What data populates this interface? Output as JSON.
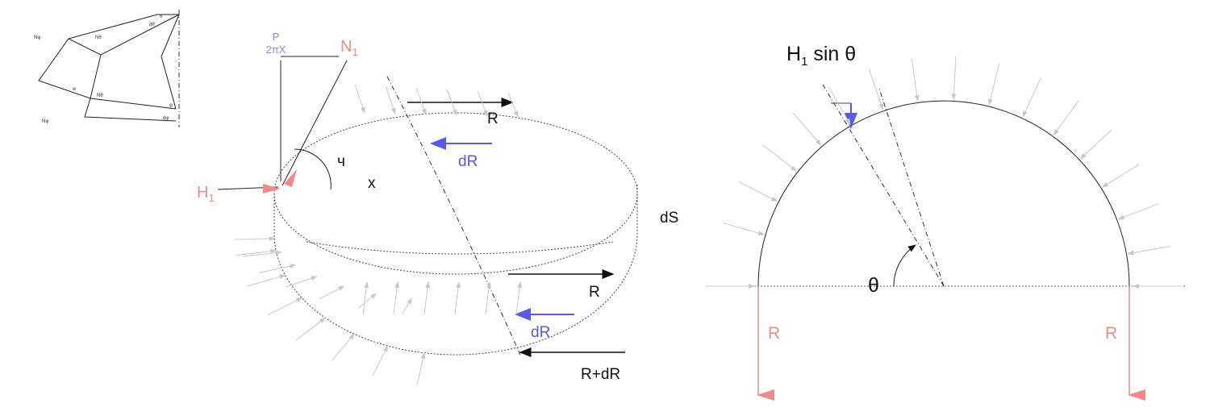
{
  "thumbnail": {
    "labels": [
      "Nφ",
      "Nθ",
      "w",
      "Nθ",
      "Nφ",
      "θ",
      "dθ",
      "φ",
      "dφ"
    ]
  },
  "shell": {
    "p": "P",
    "two_pi_x": "2πX",
    "n1": {
      "base": "N",
      "sub": "1"
    },
    "h1": {
      "base": "H",
      "sub": "1"
    },
    "angle": "ч",
    "x": "x",
    "r_top": "R",
    "dr_top": "dR",
    "ds": "dS",
    "r_mid": "R",
    "dr_bottom": "dR",
    "r_plus_dr": "R+dR"
  },
  "ring": {
    "load": {
      "base": "H",
      "sub": "1",
      "rest": " sin θ"
    },
    "theta": "θ",
    "r_left": "R",
    "r_right": "R"
  }
}
